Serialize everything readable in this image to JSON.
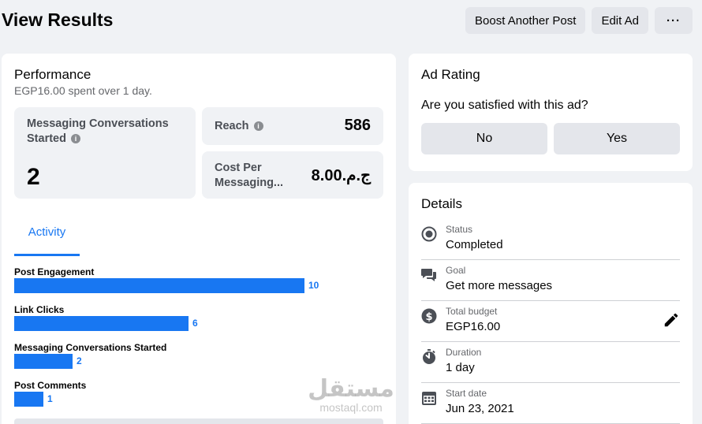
{
  "header": {
    "title": "View Results",
    "boost_label": "Boost Another Post",
    "edit_label": "Edit Ad",
    "more_label": "···"
  },
  "performance": {
    "title": "Performance",
    "spent_amount": "EGP16.00",
    "spent_middle": " spent over ",
    "spent_days": "1",
    "spent_suffix": " day.",
    "metrics": {
      "messaging_label": "Messaging Conversations Started",
      "messaging_value": "2",
      "reach_label": "Reach",
      "reach_value": "586",
      "cost_label": "Cost Per Messaging...",
      "cost_value": "ج.م.8.00"
    },
    "tab_label": "Activity"
  },
  "chart_data": {
    "type": "bar",
    "orientation": "horizontal",
    "categories": [
      "Post Engagement",
      "Link Clicks",
      "Messaging Conversations Started",
      "Post Comments"
    ],
    "values": [
      10,
      6,
      2,
      1
    ],
    "value_labels": [
      "10",
      "6",
      "2",
      "1"
    ],
    "xlim": [
      0,
      10
    ],
    "grid": false,
    "color": "#1877f2"
  },
  "rating": {
    "title": "Ad Rating",
    "question": "Are you satisfied with this ad?",
    "no_label": "No",
    "yes_label": "Yes"
  },
  "details": {
    "title": "Details",
    "rows": [
      {
        "label": "Status",
        "value": "Completed",
        "icon": "status-icon"
      },
      {
        "label": "Goal",
        "value": "Get more messages",
        "icon": "chat-icon"
      },
      {
        "label": "Total budget",
        "value": "EGP16.00",
        "icon": "dollar-icon"
      },
      {
        "label": "Duration",
        "value": "1 day",
        "icon": "stopwatch-icon"
      },
      {
        "label": "Start date",
        "value": "Jun 23, 2021",
        "icon": "calendar-icon"
      }
    ]
  },
  "watermark": {
    "arabic": "مستقل",
    "latin": "mostaql.com"
  },
  "colors": {
    "accent": "#1877f2",
    "background": "#f0f2f5",
    "button_gray": "#e4e6eb"
  }
}
